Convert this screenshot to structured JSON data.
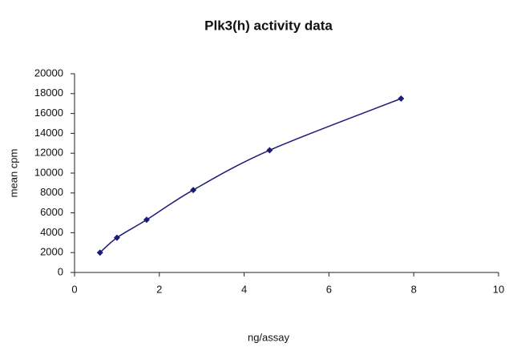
{
  "chart_data": {
    "type": "line",
    "title": "Plk3(h) activity data",
    "x_label": "ng/assay",
    "y_label": "mean cpm",
    "series": [
      {
        "x": [
          0.6,
          1.0,
          1.7,
          2.8,
          4.6,
          7.7
        ],
        "values": [
          2000,
          3500,
          5300,
          8300,
          12300,
          17500
        ],
        "color": "#1c1c78"
      }
    ],
    "xlim": [
      0,
      10
    ],
    "xticks": [
      0,
      2,
      4,
      6,
      8,
      10
    ],
    "ylim": [
      0,
      20000
    ],
    "yticks": [
      0,
      2000,
      4000,
      6000,
      8000,
      10000,
      12000,
      14000,
      16000,
      18000,
      20000
    ],
    "grid": false
  }
}
